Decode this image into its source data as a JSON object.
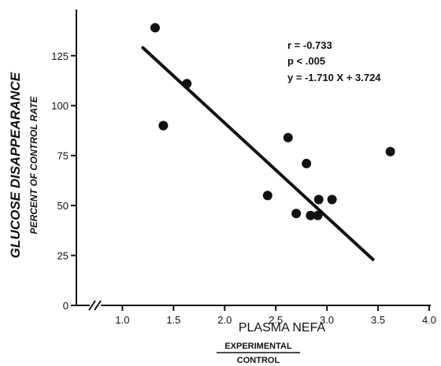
{
  "chart_data": {
    "type": "scatter",
    "ylabel": "GLUCOSE DISAPPEARANCE",
    "ylabel_sub": "PERCENT OF CONTROL RATE",
    "xlabel": "PLASMA NEFA",
    "xlabel_numerator": "EXPERIMENTAL",
    "xlabel_denominator": "CONTROL",
    "xlim": [
      0.55,
      4.0
    ],
    "ylim": [
      0,
      145
    ],
    "x_ticks": [
      "1.0",
      "1.5",
      "2.0",
      "2.5",
      "3.0",
      "3.5",
      "4.0"
    ],
    "y_ticks": [
      "0",
      "25",
      "50",
      "75",
      "100",
      "125"
    ],
    "annotations": [
      "r = -0.733",
      "p < .005",
      "y = -1.710 X + 3.724"
    ],
    "points": [
      {
        "x": 1.32,
        "y": 139
      },
      {
        "x": 1.4,
        "y": 90
      },
      {
        "x": 1.63,
        "y": 111
      },
      {
        "x": 2.42,
        "y": 55
      },
      {
        "x": 2.62,
        "y": 84
      },
      {
        "x": 2.7,
        "y": 46
      },
      {
        "x": 2.8,
        "y": 71
      },
      {
        "x": 2.84,
        "y": 45
      },
      {
        "x": 2.91,
        "y": 45
      },
      {
        "x": 2.92,
        "y": 53
      },
      {
        "x": 3.05,
        "y": 53
      },
      {
        "x": 3.62,
        "y": 77
      }
    ],
    "fit_line": {
      "x": [
        1.2,
        3.45
      ],
      "y": [
        129,
        23
      ]
    },
    "grid": false,
    "axis_break": true
  }
}
